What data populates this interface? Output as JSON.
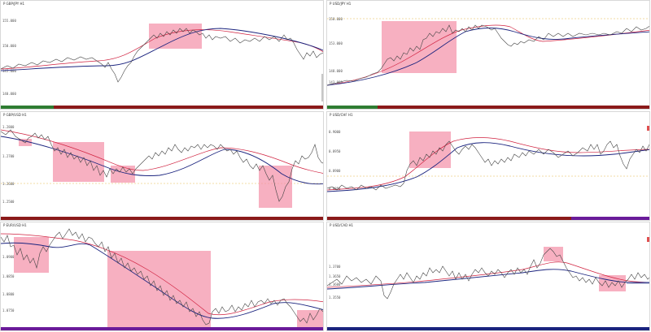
{
  "colors": {
    "price": "#4a4a4a",
    "ma_fast": "#d0213f",
    "ma_slow": "#1a237e",
    "highlight": "#f48fa6",
    "bar_green": "#2e7d32",
    "bar_red": "#8b1a1a",
    "bar_purple": "#6a1b9a",
    "bar_navy": "#1a237e",
    "hline": "#e6b84a"
  },
  "panes": [
    {
      "id": "p1",
      "title": "P GBP/JPY H1",
      "ylabels": [
        "155.000",
        "150.000",
        "145.000",
        "140.000"
      ]
    },
    {
      "id": "p2",
      "title": "P USD/JPY H1",
      "ylabels": [
        "158.000",
        "153.000",
        "148.000",
        "143.000"
      ]
    },
    {
      "id": "p3",
      "title": "P GBP/USD H1",
      "ylabels": [
        "1.2800",
        "1.2700",
        "1.2600",
        "1.2500"
      ]
    },
    {
      "id": "p4",
      "title": "P USD/CHF H1",
      "ylabels": [
        "0.9000",
        "0.8950",
        "0.8900",
        "0.8850"
      ]
    },
    {
      "id": "p5",
      "title": "P EUR/USD H1",
      "ylabels": [
        "1.0900",
        "1.0850",
        "1.0800",
        "1.0750"
      ]
    },
    {
      "id": "p6",
      "title": "P USD/CAD H1",
      "ylabels": [
        "1.3700",
        "1.3650",
        "1.3600",
        "1.3550"
      ]
    }
  ]
}
